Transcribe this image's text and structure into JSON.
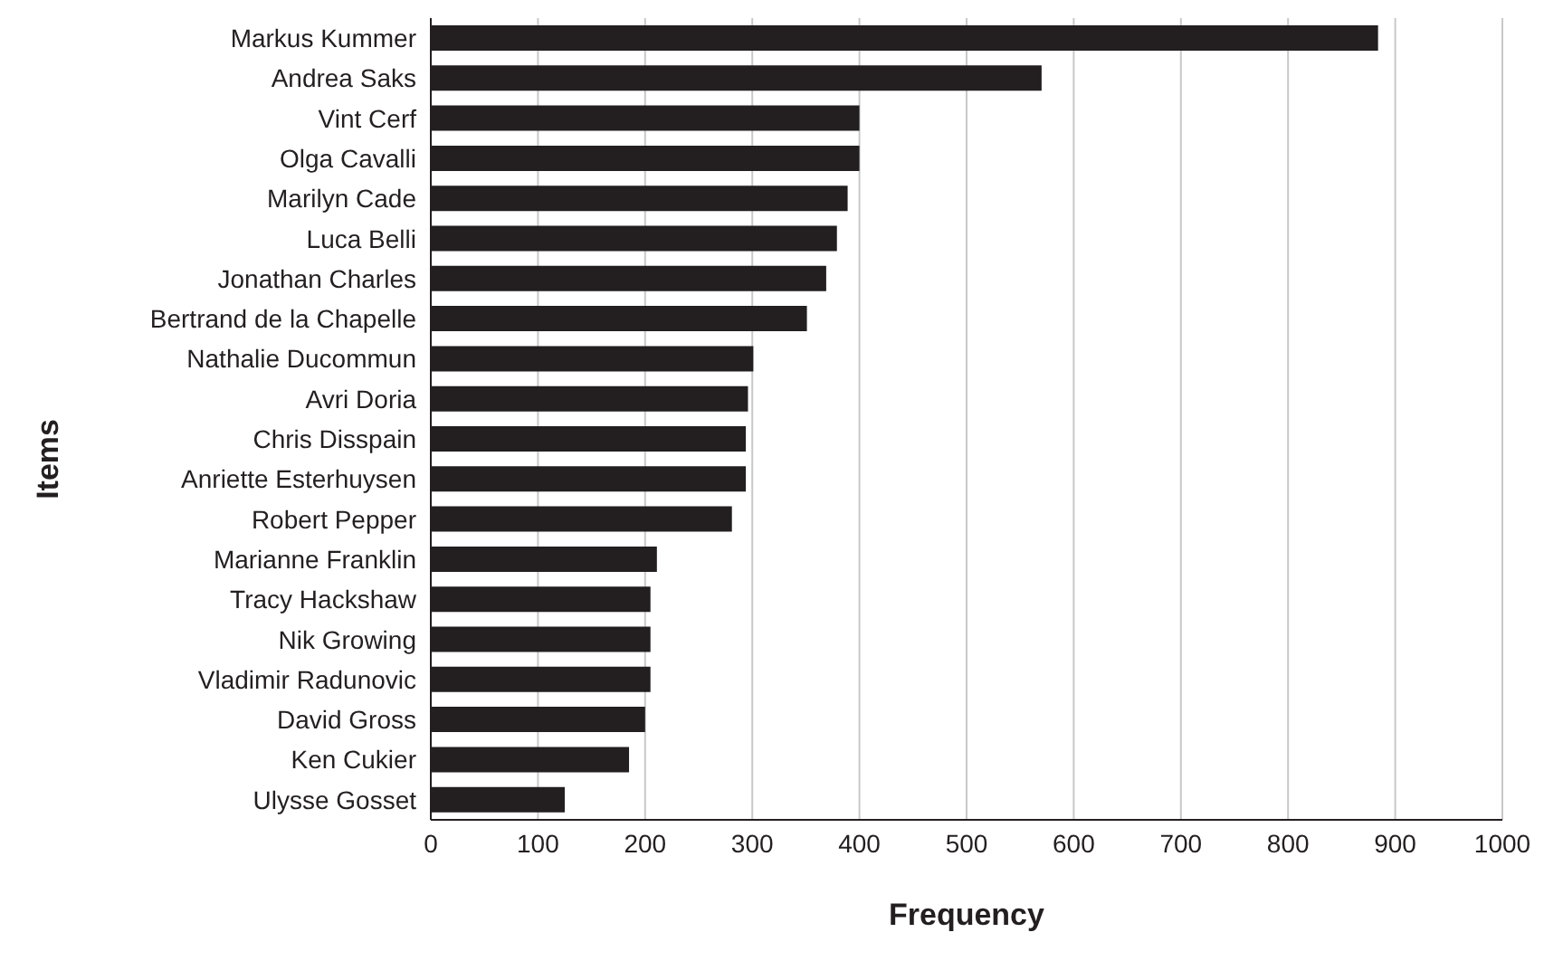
{
  "chart_data": {
    "type": "bar",
    "orientation": "horizontal",
    "xlabel": "Frequency",
    "ylabel": "Items",
    "categories": [
      "Markus Kummer",
      "Andrea Saks",
      "Vint Cerf",
      "Olga Cavalli",
      "Marilyn Cade",
      "Luca Belli",
      "Jonathan Charles",
      "Bertrand de la Chapelle",
      "Nathalie Ducommun",
      "Avri Doria",
      "Chris Disspain",
      "Anriette Esterhuysen",
      "Robert Pepper",
      "Marianne Franklin",
      "Tracy Hackshaw",
      "Nik Growing",
      "Vladimir Radunovic",
      "David Gross",
      "Ken Cukier",
      "Ulysse Gosset"
    ],
    "values": [
      884,
      570,
      400,
      400,
      389,
      379,
      369,
      351,
      301,
      296,
      294,
      294,
      281,
      211,
      205,
      205,
      205,
      200,
      185,
      125
    ],
    "color": "#231f20",
    "xlim": [
      0,
      1000
    ],
    "xticks": [
      0,
      100,
      200,
      300,
      400,
      500,
      600,
      700,
      800,
      900,
      1000
    ],
    "grid": "x"
  }
}
